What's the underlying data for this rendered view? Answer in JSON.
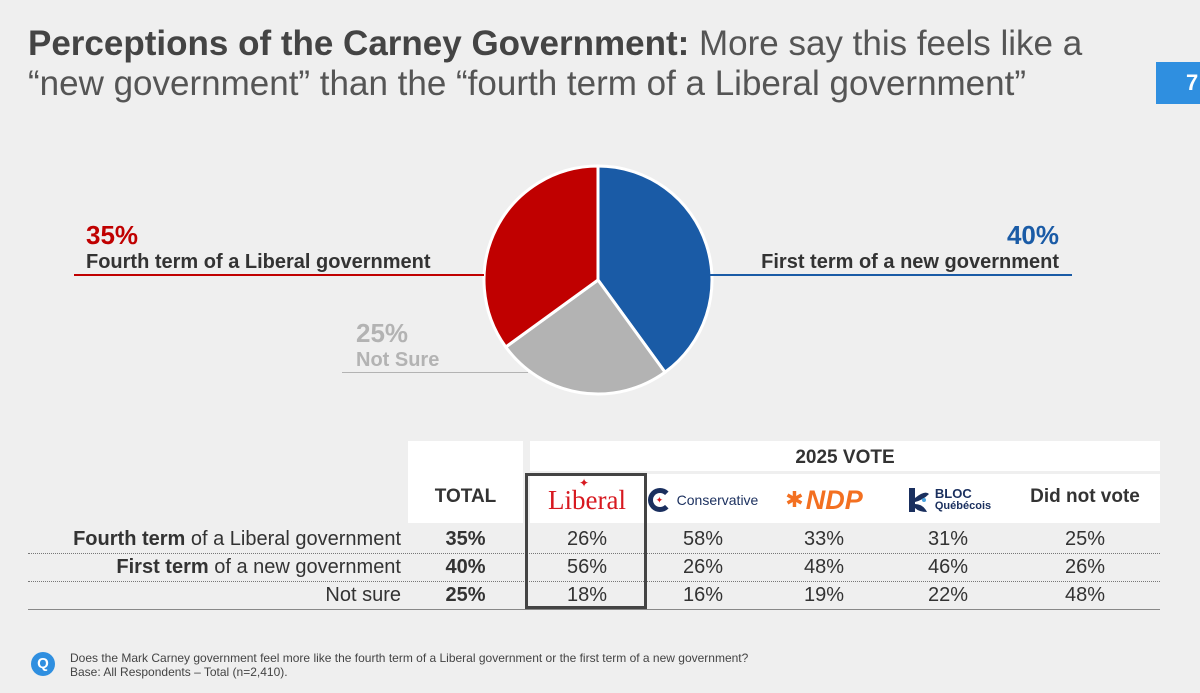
{
  "title": {
    "bold": "Perceptions of the Carney Government:",
    "rest": " More say this feels like a “new government” than the “fourth term of a Liberal government”"
  },
  "page_number": "7",
  "colors": {
    "liberal_red": "#c00000",
    "new_blue": "#1a5ba6",
    "not_sure_gray": "#b3b3b3",
    "accent": "#2f8fe0"
  },
  "chart_data": [
    {
      "type": "pie",
      "title": "",
      "slices": [
        {
          "label": "First term of a new government",
          "value": 40,
          "display": "40%",
          "color": "#1a5ba6"
        },
        {
          "label": "Not Sure",
          "value": 25,
          "display": "25%",
          "color": "#b3b3b3"
        },
        {
          "label": "Fourth term of a Liberal government",
          "value": 35,
          "display": "35%",
          "color": "#c00000"
        }
      ]
    },
    {
      "type": "table",
      "group_header": "2025 VOTE",
      "columns": [
        "TOTAL",
        "Liberal",
        "Conservative",
        "NDP",
        "BLOC Québécois",
        "Did not vote"
      ],
      "rows": [
        {
          "label_bold": "Fourth term",
          "label_rest": " of a Liberal government",
          "values": [
            "35%",
            "26%",
            "58%",
            "33%",
            "31%",
            "25%"
          ]
        },
        {
          "label_bold": "First term",
          "label_rest": " of a new government",
          "values": [
            "40%",
            "56%",
            "26%",
            "48%",
            "46%",
            "26%"
          ]
        },
        {
          "label_bold": "",
          "label_rest": "Not sure",
          "values": [
            "25%",
            "18%",
            "16%",
            "19%",
            "22%",
            "48%"
          ]
        }
      ],
      "highlighted_column": "Liberal"
    }
  ],
  "pie_labels": {
    "liberal": {
      "pct": "35%",
      "text": "Fourth term of a Liberal government"
    },
    "new": {
      "pct": "40%",
      "text": "First term of a new government"
    },
    "not_sure": {
      "pct": "25%",
      "text": "Not Sure"
    }
  },
  "table_headers": {
    "total": "TOTAL",
    "vote_group": "2025 VOTE",
    "liberal_logo": "Liberal",
    "conservative_logo": "Conservative",
    "ndp_logo": "NDP",
    "bloc_logo_1": "BLOC",
    "bloc_logo_2": "Québécois",
    "did_not_vote": "Did not vote"
  },
  "footer": {
    "icon": "Q",
    "question": "Does the Mark Carney government feel more like the fourth term of a Liberal government or the first term of a new government?",
    "base": "Base: All Respondents – Total (n=2,410)."
  }
}
